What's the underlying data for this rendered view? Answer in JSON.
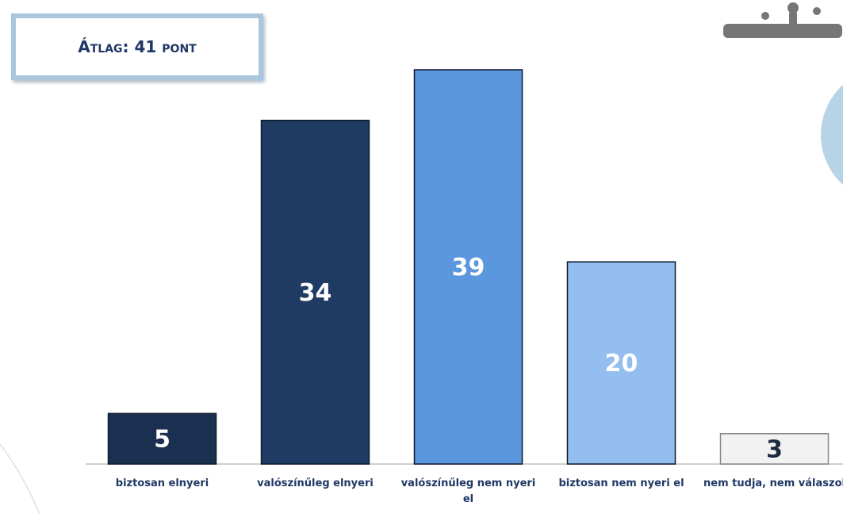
{
  "chart_data": {
    "type": "bar",
    "annotation": "Átlag: 41 pont",
    "categories": [
      "biztosan elnyeri",
      "valószínűleg elnyeri",
      "valószínűleg nem nyeri el",
      "biztosan nem nyeri el",
      "nem tudja, nem válaszol"
    ],
    "values": [
      5,
      34,
      39,
      20,
      3
    ],
    "colors": [
      "#1b3050",
      "#1f3b63",
      "#5b97dc",
      "#95bef0",
      "#f2f2f2"
    ]
  }
}
